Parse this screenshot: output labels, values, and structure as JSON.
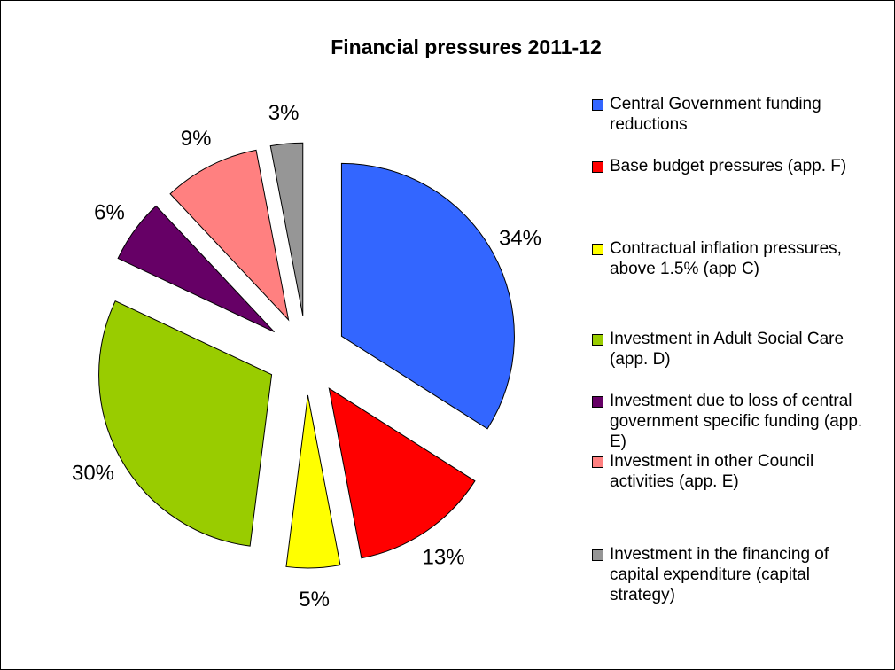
{
  "chart_data": {
    "type": "pie",
    "title": "Financial pressures 2011-12",
    "categories": [
      "Central Government funding reductions",
      "Base budget pressures (app. F)",
      "Contractual inflation pressures, above 1.5% (app C)",
      "Investment in Adult Social Care (app. D)",
      "Investment due to loss of central government specific funding (app. E)",
      "Investment in other Council activities (app. E)",
      "Investment in the financing of capital expenditure (capital strategy)"
    ],
    "values": [
      34,
      13,
      5,
      30,
      6,
      9,
      3
    ],
    "value_labels": [
      "34%",
      "13%",
      "5%",
      "30%",
      "6%",
      "9%",
      "3%"
    ],
    "colors": [
      "#3366ff",
      "#ff0000",
      "#ffff00",
      "#99cc00",
      "#660066",
      "#ff8080",
      "#969696"
    ]
  }
}
